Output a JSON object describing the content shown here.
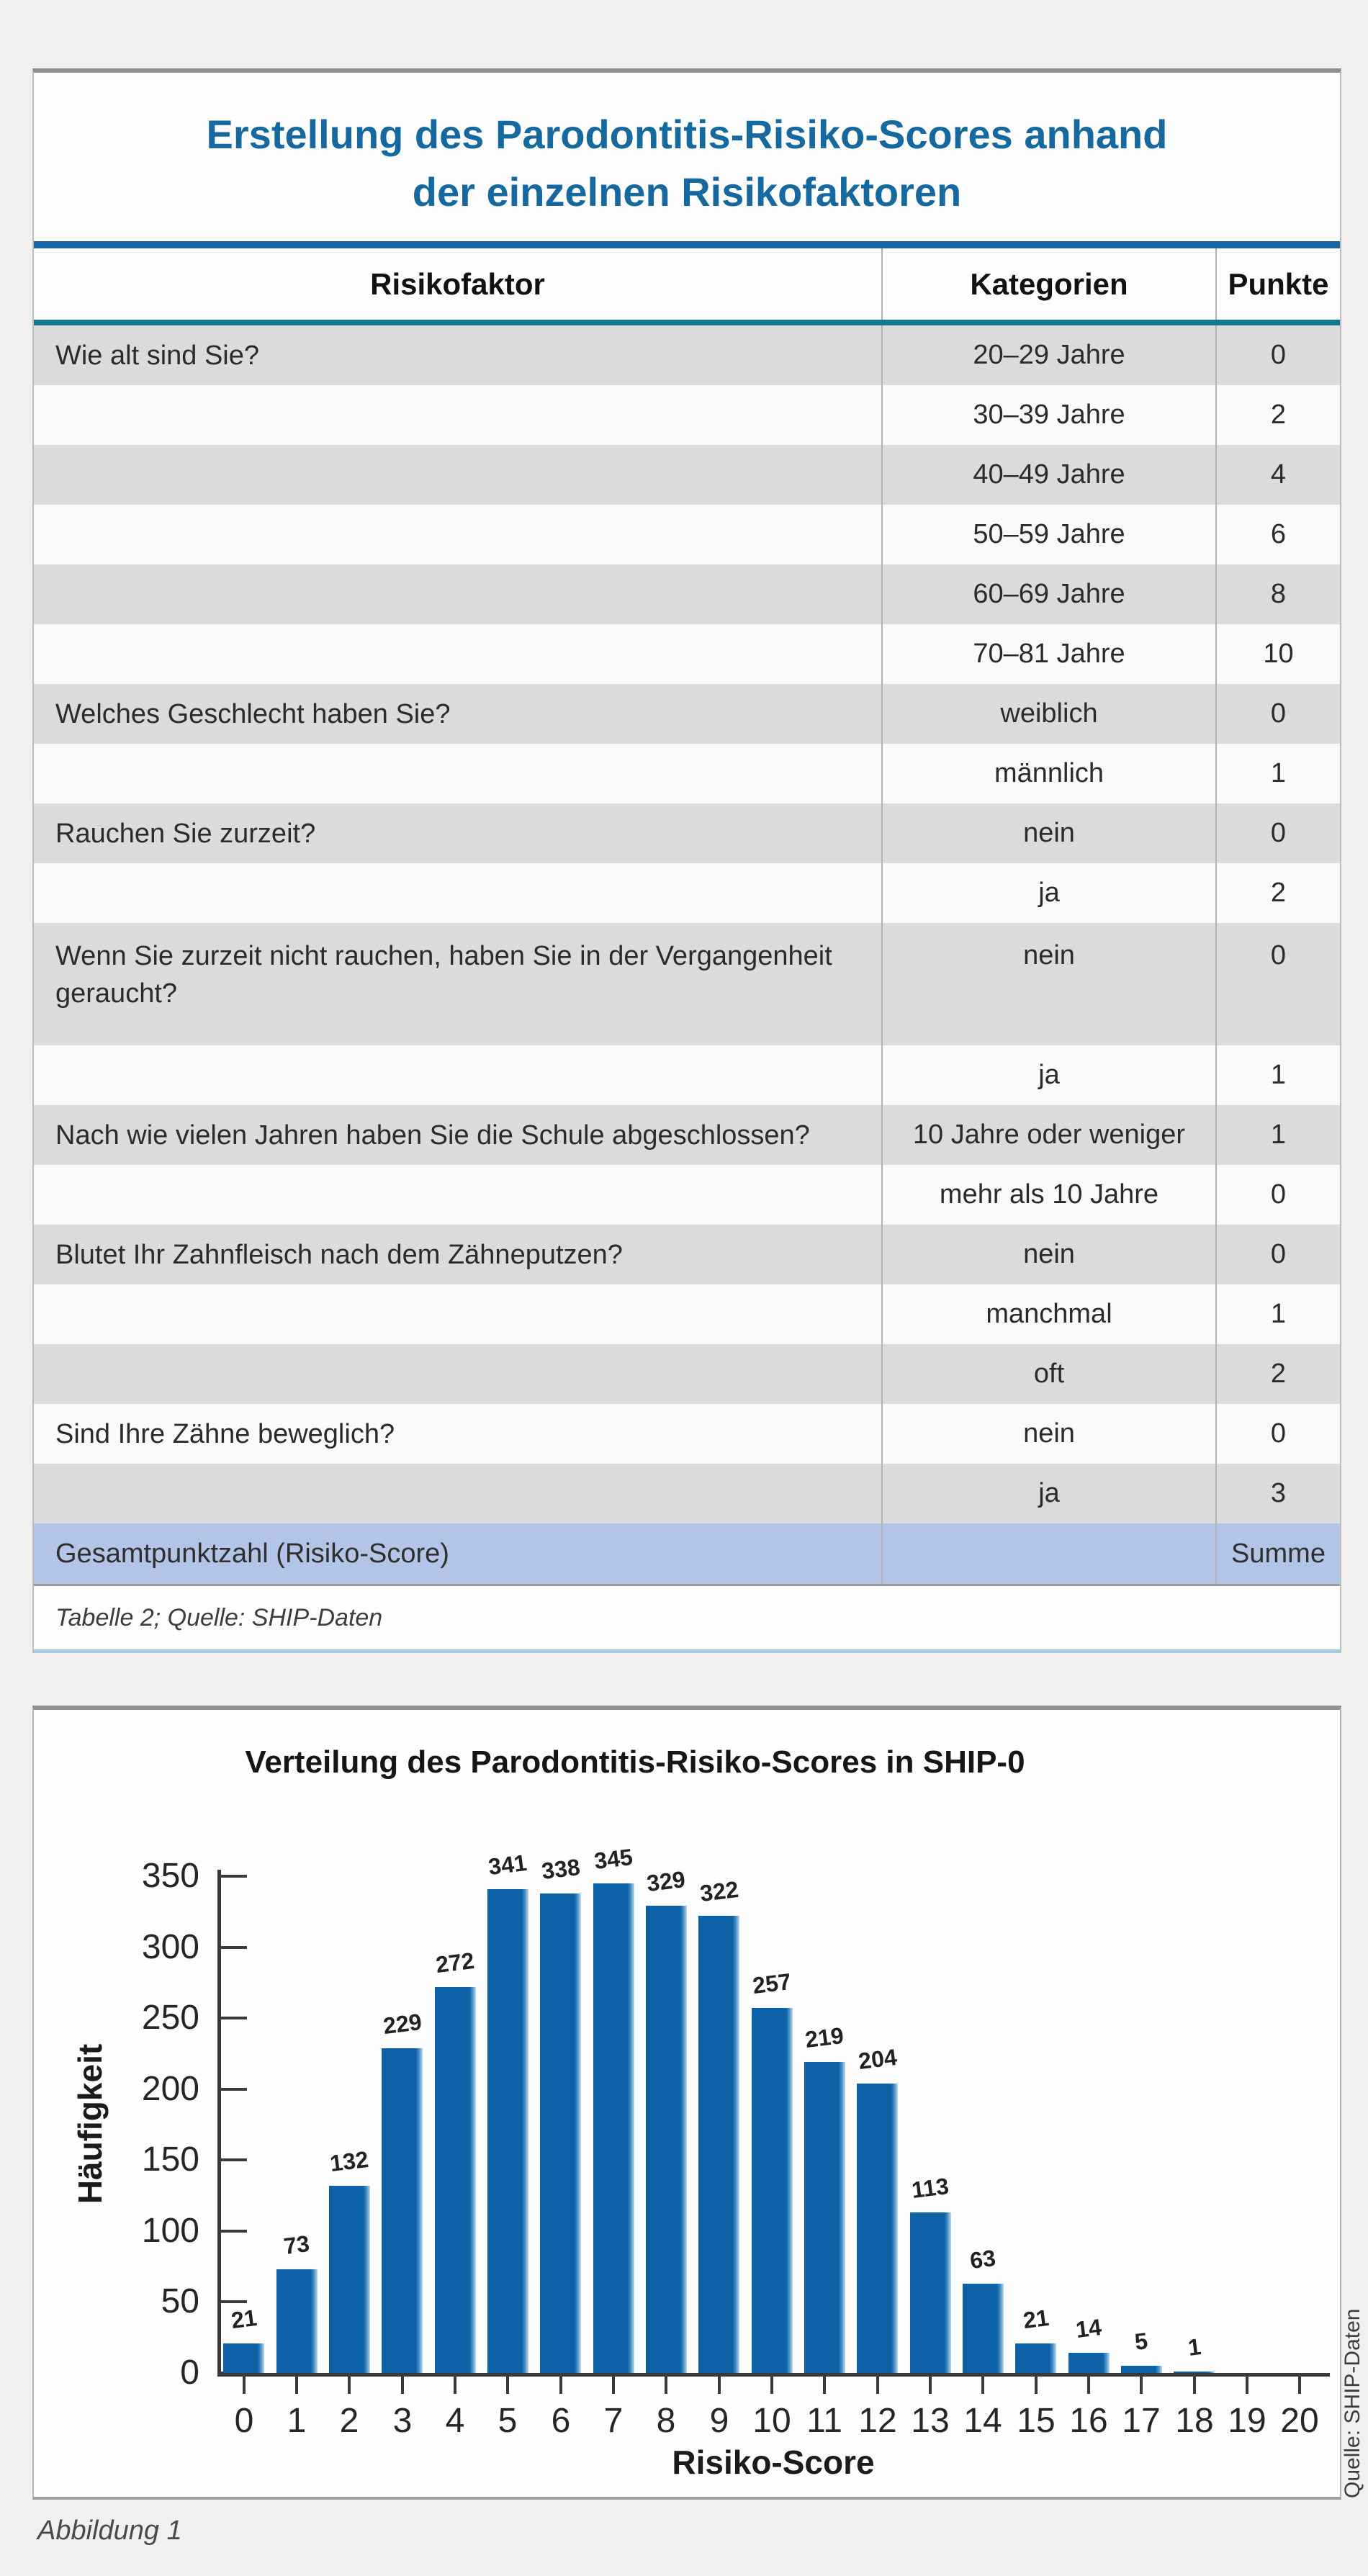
{
  "table_figure": {
    "title": [
      "Erstellung des Parodontitis-Risiko-Scores anhand",
      "der einzelnen Risikofaktoren"
    ],
    "columns": [
      "Risikofaktor",
      "Kategorien",
      "Punkte"
    ],
    "rows": [
      {
        "factor": "Wie alt sind Sie?",
        "category": "20–29 Jahre",
        "points": "0"
      },
      {
        "factor": "",
        "category": "30–39 Jahre",
        "points": "2"
      },
      {
        "factor": "",
        "category": "40–49 Jahre",
        "points": "4"
      },
      {
        "factor": "",
        "category": "50–59 Jahre",
        "points": "6"
      },
      {
        "factor": "",
        "category": "60–69 Jahre",
        "points": "8"
      },
      {
        "factor": "",
        "category": "70–81 Jahre",
        "points": "10"
      },
      {
        "factor": "Welches Geschlecht haben Sie?",
        "category": "weiblich",
        "points": "0"
      },
      {
        "factor": "",
        "category": "männlich",
        "points": "1"
      },
      {
        "factor": "Rauchen Sie zurzeit?",
        "category": "nein",
        "points": "0"
      },
      {
        "factor": "",
        "category": "ja",
        "points": "2"
      },
      {
        "factor": "Wenn Sie zurzeit nicht rauchen, haben Sie in der Vergangenheit geraucht?",
        "category": "nein",
        "points": "0",
        "tall": true
      },
      {
        "factor": "",
        "category": "ja",
        "points": "1"
      },
      {
        "factor": "Nach wie vielen Jahren haben Sie die Schule abgeschlossen?",
        "category": "10 Jahre oder weniger",
        "points": "1"
      },
      {
        "factor": "",
        "category": "mehr als 10 Jahre",
        "points": "0"
      },
      {
        "factor": "Blutet Ihr Zahnfleisch nach dem Zähneputzen?",
        "category": "nein",
        "points": "0"
      },
      {
        "factor": "",
        "category": "manchmal",
        "points": "1"
      },
      {
        "factor": "",
        "category": "oft",
        "points": "2"
      },
      {
        "factor": "Sind Ihre Zähne beweglich?",
        "category": "nein",
        "points": "0"
      },
      {
        "factor": "",
        "category": "ja",
        "points": "3"
      }
    ],
    "total_row": {
      "factor": "Gesamtpunktzahl (Risiko-Score)",
      "category": "",
      "points": "Summe"
    },
    "footnote": "Tabelle 2; Quelle: SHIP-Daten"
  },
  "chart_figure": {
    "caption": "Abbildung 1",
    "source_note": "Quelle: SHIP-Daten"
  },
  "chart_data": {
    "type": "bar",
    "title": "Verteilung des Parodontitis-Risiko-Scores in SHIP-0",
    "xlabel": "Risiko-Score",
    "ylabel": "Häufigkeit",
    "categories": [
      0,
      1,
      2,
      3,
      4,
      5,
      6,
      7,
      8,
      9,
      10,
      11,
      12,
      13,
      14,
      15,
      16,
      17,
      18,
      19,
      20
    ],
    "values": [
      21,
      73,
      132,
      229,
      272,
      341,
      338,
      345,
      329,
      322,
      257,
      219,
      204,
      113,
      63,
      21,
      14,
      5,
      1,
      0,
      0
    ],
    "ylim": [
      0,
      350
    ],
    "yticks": [
      0,
      50,
      100,
      150,
      200,
      250,
      300,
      350
    ],
    "grid": false,
    "legend": null,
    "data_labels": true
  },
  "colors": {
    "table_title": "#16699e",
    "title_rule": "#1565a8",
    "header_rule": "#11798c",
    "row_gray": "#dbdbdb",
    "row_white": "#fafafa",
    "total_row_bg": "#b2c5e6",
    "bar": "#0d62a7",
    "bar_edge": "#bcdaee",
    "axis": "#3a3a3a"
  }
}
